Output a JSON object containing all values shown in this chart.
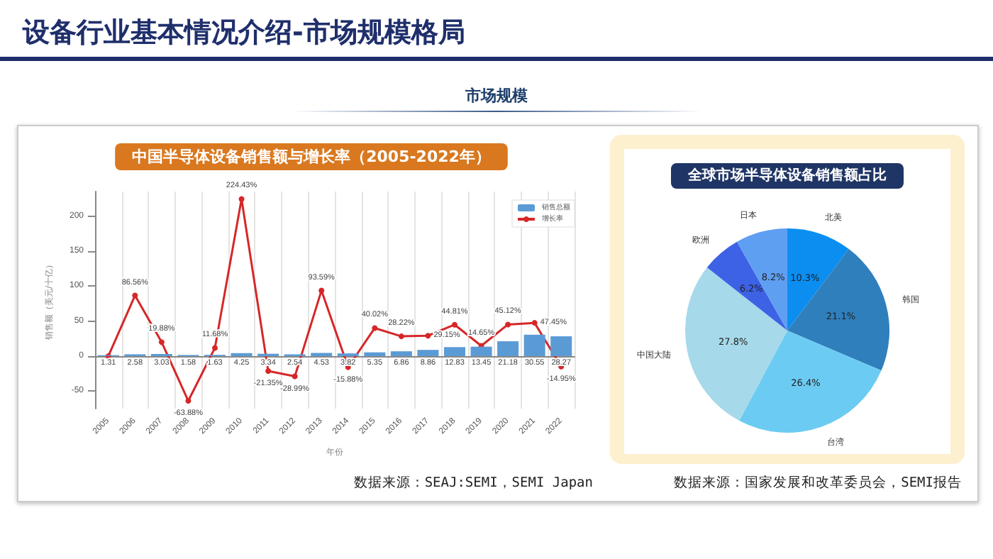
{
  "chart_data": [
    {
      "type": "other",
      "title": "设备行业基本情况介绍-市场规模格局",
      "subtitle": "市场规模"
    },
    {
      "type": "bar",
      "title": "中国半导体设备销售额与增长率（2005-2022年）",
      "xlabel": "年份",
      "ylabel": "销售额（美元/十亿）",
      "categories": [
        "2005",
        "2006",
        "2007",
        "2008",
        "2009",
        "2010",
        "2011",
        "2012",
        "2013",
        "2014",
        "2015",
        "2016",
        "2017",
        "2018",
        "2019",
        "2020",
        "2021",
        "2022"
      ],
      "series": [
        {
          "name": "销售总额",
          "type": "bar",
          "color": "#5b9bd5",
          "values": [
            1.31,
            2.58,
            3.03,
            1.58,
            1.63,
            4.25,
            3.34,
            2.54,
            4.53,
            3.82,
            5.35,
            6.86,
            8.86,
            12.83,
            13.45,
            21.18,
            30.55,
            28.27
          ],
          "value_labels": [
            "1.31",
            "2.58",
            "3.03",
            "1.58",
            "1.63",
            "4.25",
            "3.34",
            "2.54",
            "4.53",
            "3.82",
            "5.35",
            "6.86",
            "8.86",
            "12.83",
            "13.45",
            "21.18",
            "30.55",
            "28.27"
          ]
        },
        {
          "name": "增长率",
          "type": "line",
          "color": "#d62728",
          "values": [
            0,
            86.56,
            19.88,
            -63.88,
            11.68,
            224.43,
            -21.35,
            -28.99,
            93.59,
            -15.88,
            40.02,
            28.22,
            29.15,
            44.81,
            14.65,
            45.12,
            47.45,
            -14.95
          ],
          "value_labels": [
            null,
            "86.56%",
            "19.88%",
            "-63.88%",
            "11.68%",
            "224.43%",
            "-21.35%",
            "-28.99%",
            "93.59%",
            "-15.88%",
            "40.02%",
            "28.22%",
            "29.15%",
            "44.81%",
            "14.65%",
            "45.12%",
            "47.45%",
            "-14.95%"
          ]
        }
      ],
      "ylim": [
        -75,
        235
      ],
      "yticks": [
        -50,
        0,
        50,
        100,
        150,
        200
      ],
      "grid": "x",
      "legend": "top right",
      "marker": "circle",
      "line_style": "solid",
      "annotations": [
        "数据来源：SEAJ:SEMI，SEMI Japan"
      ]
    },
    {
      "type": "pie",
      "title": "全球市场半导体设备销售额占比",
      "categories": [
        "北美",
        "韩国",
        "台湾",
        "中国大陆",
        "欧洲",
        "日本"
      ],
      "values": [
        10.3,
        21.1,
        26.4,
        27.8,
        6.2,
        8.2
      ],
      "colors": [
        "#0b8ef0",
        "#2f7fbd",
        "#6ccbf2",
        "#a6d9ea",
        "#3d62e6",
        "#5f9ff2"
      ],
      "value_labels": [
        "10.3%",
        "21.1%",
        "26.4%",
        "27.8%",
        "6.2%",
        "8.2%"
      ],
      "annotations": [
        "数据来源：国家发展和改革委员会，SEMI报告"
      ]
    }
  ]
}
